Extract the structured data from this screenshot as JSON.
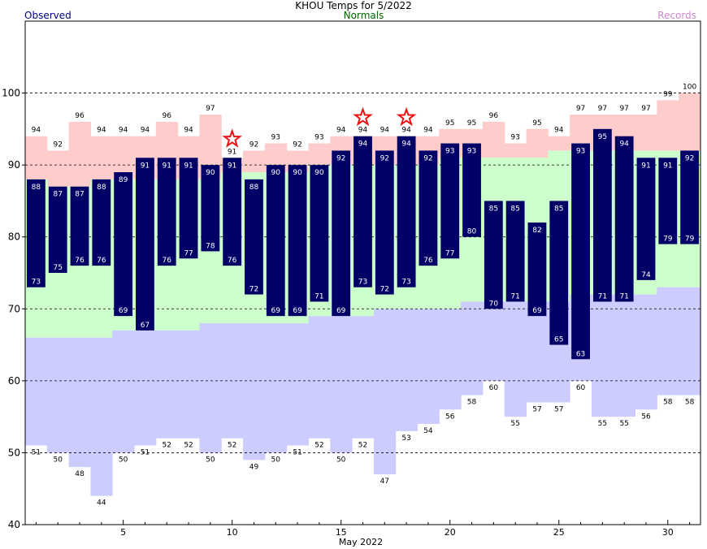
{
  "title": "KHOU Temps for 5/2022",
  "legend": {
    "observed": "Observed",
    "normals": "Normals",
    "records": "Records"
  },
  "colors": {
    "observed": "#000066",
    "normals_fill": "#ccffcc",
    "records_high_fill": "#ffcccc",
    "records_low_fill": "#ccccff",
    "star": "#ee1111",
    "legend_observed": "#000080",
    "legend_normals": "#006600",
    "legend_records": "#cc88cc"
  },
  "chart_data": {
    "type": "bar",
    "xlabel": "May 2022",
    "ylabel": "",
    "xlim": [
      1,
      31
    ],
    "ylim": [
      40,
      110
    ],
    "x_ticks": [
      5,
      10,
      15,
      20,
      25,
      30
    ],
    "y_ticks": [
      40,
      50,
      60,
      70,
      80,
      90,
      100
    ],
    "grid_y": [
      50,
      60,
      70,
      80,
      90,
      100
    ],
    "days": [
      1,
      2,
      3,
      4,
      5,
      6,
      7,
      8,
      9,
      10,
      11,
      12,
      13,
      14,
      15,
      16,
      17,
      18,
      19,
      20,
      21,
      22,
      23,
      24,
      25,
      26,
      27,
      28,
      29,
      30,
      31
    ],
    "observed_high": [
      88,
      87,
      87,
      88,
      89,
      91,
      91,
      91,
      90,
      91,
      88,
      90,
      90,
      90,
      92,
      94,
      92,
      94,
      92,
      93,
      93,
      85,
      85,
      82,
      85,
      93,
      95,
      94,
      91,
      91,
      92
    ],
    "observed_low": [
      73,
      75,
      76,
      76,
      69,
      67,
      76,
      77,
      78,
      76,
      72,
      69,
      69,
      71,
      69,
      73,
      72,
      73,
      76,
      77,
      80,
      70,
      71,
      69,
      65,
      63,
      71,
      71,
      74,
      79,
      79
    ],
    "normal_high": [
      88,
      87,
      87,
      88,
      88,
      88,
      88,
      88,
      88,
      89,
      89,
      89,
      89,
      90,
      90,
      90,
      90,
      90,
      90,
      91,
      91,
      91,
      91,
      91,
      92,
      92,
      92,
      92,
      92,
      92,
      92
    ],
    "normal_low": [
      66,
      66,
      66,
      66,
      67,
      67,
      67,
      67,
      68,
      68,
      68,
      68,
      68,
      69,
      69,
      69,
      70,
      70,
      70,
      70,
      71,
      71,
      71,
      71,
      71,
      72,
      72,
      72,
      72,
      73,
      73
    ],
    "record_high": [
      94,
      92,
      96,
      94,
      94,
      94,
      96,
      94,
      97,
      91,
      92,
      93,
      92,
      93,
      94,
      94,
      94,
      94,
      94,
      95,
      95,
      96,
      93,
      95,
      94,
      97,
      97,
      97,
      97,
      99,
      100
    ],
    "record_low": [
      51,
      50,
      48,
      44,
      50,
      51,
      52,
      52,
      50,
      52,
      49,
      50,
      51,
      52,
      50,
      52,
      47,
      53,
      54,
      56,
      58,
      60,
      55,
      57,
      57,
      60,
      55,
      55,
      56,
      58,
      58
    ],
    "record_set_days": [
      10,
      16,
      18
    ]
  }
}
